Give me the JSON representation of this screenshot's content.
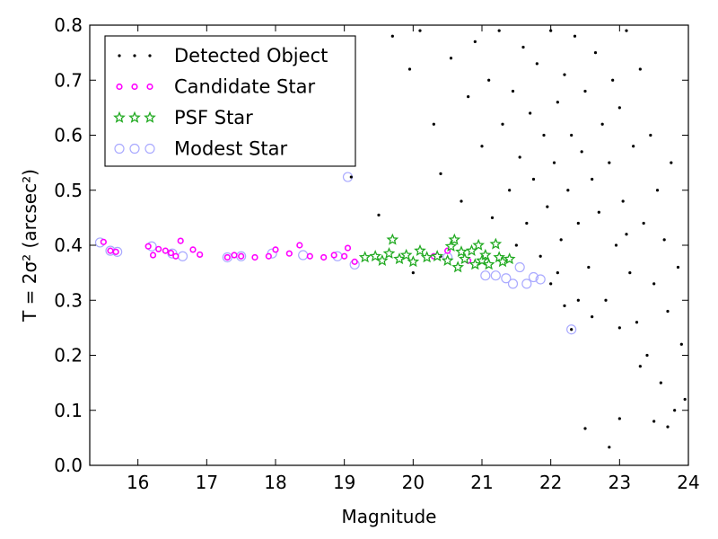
{
  "chart_data": {
    "type": "scatter",
    "xlabel": "Magnitude",
    "ylabel": "T = 2σ² (arcsec²)",
    "xlim": [
      15.3,
      24
    ],
    "ylim": [
      0.0,
      0.8
    ],
    "xticks": [
      "16",
      "17",
      "18",
      "19",
      "20",
      "21",
      "22",
      "23",
      "24"
    ],
    "yticks": [
      "0.0",
      "0.1",
      "0.2",
      "0.3",
      "0.4",
      "0.5",
      "0.6",
      "0.7",
      "0.8"
    ],
    "grid": false,
    "legend_position": "top-left",
    "series": [
      {
        "name": "Detected Object",
        "marker": "dot",
        "color": "#000000",
        "note_points_sampled": true,
        "points": [
          [
            19.1,
            0.524
          ],
          [
            19.5,
            0.455
          ],
          [
            20.0,
            0.35
          ],
          [
            20.4,
            0.38
          ],
          [
            22.3,
            0.247
          ],
          [
            22.5,
            0.067
          ],
          [
            22.85,
            0.033
          ],
          [
            23.0,
            0.085
          ],
          [
            23.7,
            0.07
          ],
          [
            19.7,
            0.78
          ],
          [
            19.95,
            0.72
          ],
          [
            20.1,
            0.79
          ],
          [
            20.3,
            0.62
          ],
          [
            20.4,
            0.53
          ],
          [
            20.55,
            0.74
          ],
          [
            20.7,
            0.48
          ],
          [
            20.8,
            0.67
          ],
          [
            20.9,
            0.77
          ],
          [
            21.0,
            0.58
          ],
          [
            21.1,
            0.7
          ],
          [
            21.15,
            0.45
          ],
          [
            21.25,
            0.79
          ],
          [
            21.3,
            0.62
          ],
          [
            21.4,
            0.5
          ],
          [
            21.45,
            0.68
          ],
          [
            21.5,
            0.4
          ],
          [
            21.55,
            0.56
          ],
          [
            21.6,
            0.76
          ],
          [
            21.65,
            0.44
          ],
          [
            21.7,
            0.64
          ],
          [
            21.75,
            0.52
          ],
          [
            21.8,
            0.73
          ],
          [
            21.85,
            0.38
          ],
          [
            21.9,
            0.6
          ],
          [
            21.95,
            0.47
          ],
          [
            22.0,
            0.79
          ],
          [
            22.05,
            0.55
          ],
          [
            22.1,
            0.66
          ],
          [
            22.15,
            0.41
          ],
          [
            22.2,
            0.71
          ],
          [
            22.25,
            0.5
          ],
          [
            22.3,
            0.6
          ],
          [
            22.35,
            0.78
          ],
          [
            22.4,
            0.44
          ],
          [
            22.45,
            0.57
          ],
          [
            22.5,
            0.68
          ],
          [
            22.55,
            0.36
          ],
          [
            22.6,
            0.52
          ],
          [
            22.65,
            0.75
          ],
          [
            22.7,
            0.46
          ],
          [
            22.75,
            0.62
          ],
          [
            22.8,
            0.3
          ],
          [
            22.85,
            0.55
          ],
          [
            22.9,
            0.7
          ],
          [
            22.95,
            0.4
          ],
          [
            23.0,
            0.65
          ],
          [
            23.05,
            0.48
          ],
          [
            23.1,
            0.79
          ],
          [
            23.15,
            0.35
          ],
          [
            23.2,
            0.58
          ],
          [
            23.25,
            0.26
          ],
          [
            23.3,
            0.72
          ],
          [
            23.35,
            0.44
          ],
          [
            23.4,
            0.2
          ],
          [
            23.45,
            0.6
          ],
          [
            23.5,
            0.33
          ],
          [
            23.55,
            0.5
          ],
          [
            23.6,
            0.15
          ],
          [
            23.65,
            0.41
          ],
          [
            23.7,
            0.28
          ],
          [
            23.75,
            0.55
          ],
          [
            23.8,
            0.1
          ],
          [
            23.85,
            0.36
          ],
          [
            23.9,
            0.22
          ],
          [
            23.95,
            0.12
          ],
          [
            22.1,
            0.35
          ],
          [
            22.4,
            0.3
          ],
          [
            22.0,
            0.33
          ],
          [
            22.2,
            0.29
          ],
          [
            23.0,
            0.25
          ],
          [
            23.3,
            0.18
          ],
          [
            23.5,
            0.08
          ],
          [
            23.1,
            0.42
          ],
          [
            22.6,
            0.27
          ]
        ]
      },
      {
        "name": "Candidate Star",
        "marker": "small-circle",
        "color": "#ff00ff",
        "points": [
          [
            15.5,
            0.406
          ],
          [
            15.6,
            0.39
          ],
          [
            15.68,
            0.388
          ],
          [
            16.15,
            0.398
          ],
          [
            16.22,
            0.382
          ],
          [
            16.3,
            0.393
          ],
          [
            16.4,
            0.39
          ],
          [
            16.48,
            0.386
          ],
          [
            16.55,
            0.38
          ],
          [
            16.62,
            0.408
          ],
          [
            16.8,
            0.392
          ],
          [
            16.9,
            0.383
          ],
          [
            17.3,
            0.378
          ],
          [
            17.4,
            0.382
          ],
          [
            17.5,
            0.38
          ],
          [
            17.7,
            0.378
          ],
          [
            17.9,
            0.38
          ],
          [
            18.0,
            0.392
          ],
          [
            18.2,
            0.385
          ],
          [
            18.35,
            0.4
          ],
          [
            18.5,
            0.38
          ],
          [
            18.7,
            0.378
          ],
          [
            18.85,
            0.382
          ],
          [
            19.0,
            0.38
          ],
          [
            19.05,
            0.395
          ],
          [
            19.15,
            0.37
          ],
          [
            20.3,
            0.38
          ],
          [
            20.5,
            0.39
          ],
          [
            20.8,
            0.372
          ]
        ]
      },
      {
        "name": "PSF Star",
        "marker": "star",
        "color": "#22aa22",
        "points": [
          [
            19.3,
            0.378
          ],
          [
            19.45,
            0.38
          ],
          [
            19.55,
            0.372
          ],
          [
            19.65,
            0.385
          ],
          [
            19.7,
            0.41
          ],
          [
            19.8,
            0.375
          ],
          [
            19.9,
            0.382
          ],
          [
            20.0,
            0.37
          ],
          [
            20.1,
            0.39
          ],
          [
            20.2,
            0.378
          ],
          [
            20.35,
            0.38
          ],
          [
            20.5,
            0.372
          ],
          [
            20.55,
            0.398
          ],
          [
            20.6,
            0.41
          ],
          [
            20.7,
            0.388
          ],
          [
            20.75,
            0.375
          ],
          [
            20.85,
            0.39
          ],
          [
            20.95,
            0.4
          ],
          [
            21.0,
            0.372
          ],
          [
            21.05,
            0.382
          ],
          [
            21.1,
            0.365
          ],
          [
            21.2,
            0.402
          ],
          [
            21.25,
            0.378
          ],
          [
            21.3,
            0.37
          ],
          [
            21.4,
            0.375
          ],
          [
            20.9,
            0.365
          ],
          [
            20.65,
            0.36
          ]
        ]
      },
      {
        "name": "Modest Star",
        "marker": "open-circle",
        "color": "#aaaaff",
        "points": [
          [
            15.45,
            0.405
          ],
          [
            15.6,
            0.39
          ],
          [
            15.7,
            0.388
          ],
          [
            16.2,
            0.398
          ],
          [
            16.5,
            0.385
          ],
          [
            16.65,
            0.38
          ],
          [
            17.3,
            0.378
          ],
          [
            17.5,
            0.38
          ],
          [
            17.95,
            0.385
          ],
          [
            18.4,
            0.382
          ],
          [
            18.9,
            0.38
          ],
          [
            19.05,
            0.524
          ],
          [
            19.15,
            0.365
          ],
          [
            20.5,
            0.378
          ],
          [
            21.05,
            0.345
          ],
          [
            21.2,
            0.345
          ],
          [
            21.35,
            0.34
          ],
          [
            21.45,
            0.33
          ],
          [
            21.55,
            0.36
          ],
          [
            21.65,
            0.33
          ],
          [
            21.75,
            0.342
          ],
          [
            21.85,
            0.338
          ],
          [
            22.3,
            0.247
          ]
        ]
      }
    ]
  }
}
